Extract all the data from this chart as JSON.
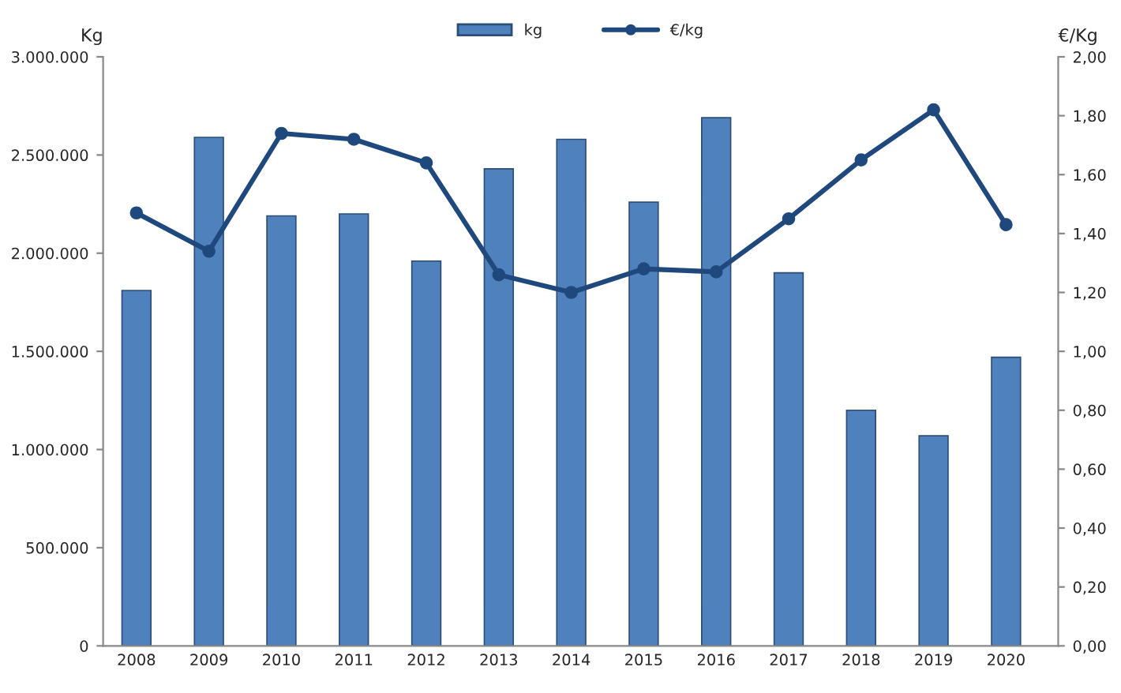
{
  "chart_data": {
    "type": "bar",
    "categories": [
      "2008",
      "2009",
      "2010",
      "2011",
      "2012",
      "2013",
      "2014",
      "2015",
      "2016",
      "2017",
      "2018",
      "2019",
      "2020"
    ],
    "series": [
      {
        "name": "kg",
        "color": "#4f81bd",
        "values": [
          1810000,
          2590000,
          2190000,
          2200000,
          1960000,
          2430000,
          2580000,
          2260000,
          2690000,
          1900000,
          1200000,
          1070000,
          1470000
        ]
      },
      {
        "name": "€/kg",
        "type": "line",
        "axis": "y2",
        "color": "#1f497d",
        "marker": "circle",
        "line_style": "solid",
        "values": [
          1.47,
          1.34,
          1.74,
          1.72,
          1.64,
          1.26,
          1.2,
          1.28,
          1.27,
          1.45,
          1.65,
          1.82,
          1.43
        ]
      }
    ],
    "ylabel": "Kg",
    "y2label": "€/Kg",
    "ylim": [
      0,
      3000000
    ],
    "yticks": [
      {
        "value": 0,
        "label": "0"
      },
      {
        "value": 500000,
        "label": "500.000"
      },
      {
        "value": 1000000,
        "label": "1.000.000"
      },
      {
        "value": 1500000,
        "label": "1.500.000"
      },
      {
        "value": 2000000,
        "label": "2.000.000"
      },
      {
        "value": 2500000,
        "label": "2.500.000"
      },
      {
        "value": 3000000,
        "label": "3.000.000"
      }
    ],
    "y2lim": [
      0,
      2
    ],
    "y2ticks": [
      {
        "value": 0,
        "label": "0,00"
      },
      {
        "value": 0.2,
        "label": "0,20"
      },
      {
        "value": 0.4,
        "label": "0,40"
      },
      {
        "value": 0.6,
        "label": "0,60"
      },
      {
        "value": 0.8,
        "label": "0,80"
      },
      {
        "value": 1.0,
        "label": "1,00"
      },
      {
        "value": 1.2,
        "label": "1,20"
      },
      {
        "value": 1.4,
        "label": "1,40"
      },
      {
        "value": 1.6,
        "label": "1,60"
      },
      {
        "value": 1.8,
        "label": "1,80"
      },
      {
        "value": 2.0,
        "label": "2,00"
      }
    ],
    "grid": false,
    "legend": "top"
  }
}
